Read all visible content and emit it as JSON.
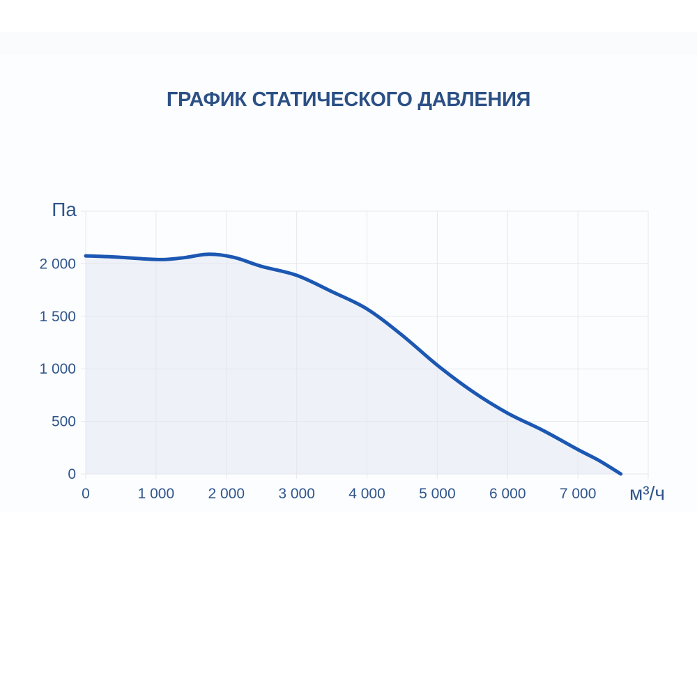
{
  "colors": {
    "background": "#ffffff",
    "panel": "#fcfdfe",
    "top_band": "#fafbfd",
    "title_text": "#2b5085",
    "axis_text": "#30558c",
    "gridline": "#e4e7ec",
    "curve": "#1c57b2",
    "area_fill": "#eef2f8"
  },
  "chart_data": {
    "type": "area",
    "title": "ГРАФИК СТАТИЧЕСКОГО ДАВЛЕНИЯ",
    "y_unit": "Па",
    "x_unit": "м³/ч",
    "xlim": [
      0,
      8000
    ],
    "ylim": [
      0,
      2500
    ],
    "x_grid_step": 1000,
    "y_grid_step": 500,
    "grid": true,
    "legend": "none",
    "x_ticks": [
      {
        "value": 0,
        "label": "0"
      },
      {
        "value": 1000,
        "label": "1 000"
      },
      {
        "value": 2000,
        "label": "2 000"
      },
      {
        "value": 3000,
        "label": "3 000"
      },
      {
        "value": 4000,
        "label": "4 000"
      },
      {
        "value": 5000,
        "label": "5 000"
      },
      {
        "value": 6000,
        "label": "6 000"
      },
      {
        "value": 7000,
        "label": "7 000"
      }
    ],
    "y_ticks": [
      {
        "value": 0,
        "label": "0"
      },
      {
        "value": 500,
        "label": "500"
      },
      {
        "value": 1000,
        "label": "1 000"
      },
      {
        "value": 1500,
        "label": "1 500"
      },
      {
        "value": 2000,
        "label": "2 000"
      }
    ],
    "series": [
      {
        "name": "static-pressure-curve",
        "color": "#1c57b2",
        "fill": "#eef2f8",
        "points": [
          [
            0,
            2075
          ],
          [
            400,
            2065
          ],
          [
            800,
            2048
          ],
          [
            1100,
            2040
          ],
          [
            1400,
            2058
          ],
          [
            1750,
            2090
          ],
          [
            2100,
            2062
          ],
          [
            2500,
            1975
          ],
          [
            3000,
            1890
          ],
          [
            3500,
            1735
          ],
          [
            4000,
            1570
          ],
          [
            4500,
            1320
          ],
          [
            5000,
            1035
          ],
          [
            5500,
            785
          ],
          [
            6000,
            578
          ],
          [
            6500,
            415
          ],
          [
            7000,
            232
          ],
          [
            7300,
            128
          ],
          [
            7610,
            0
          ]
        ]
      }
    ]
  }
}
